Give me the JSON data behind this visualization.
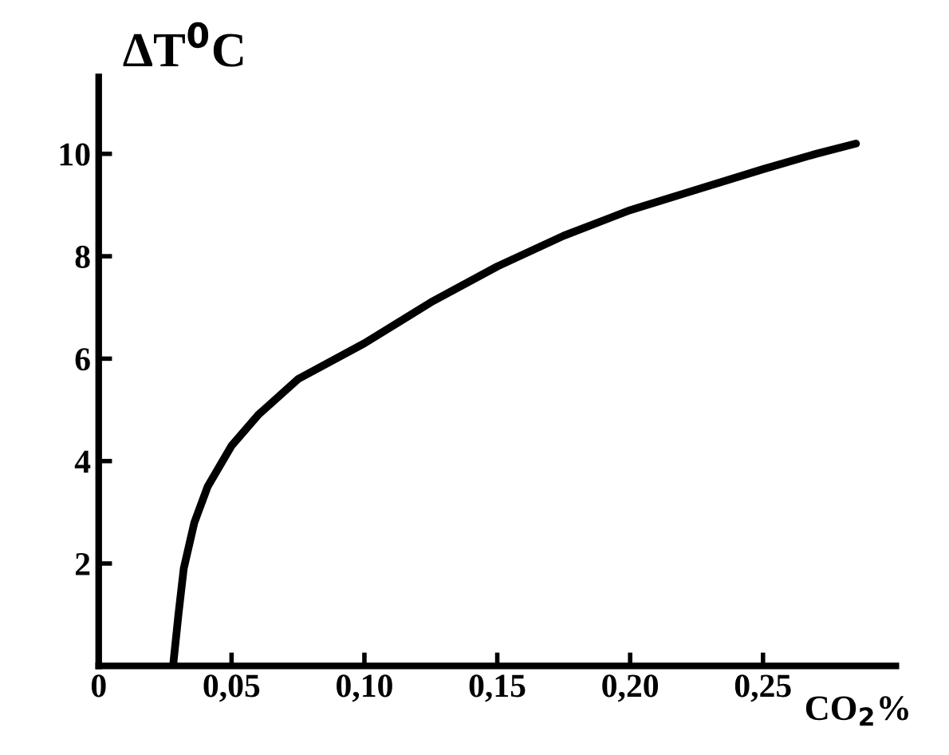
{
  "chart_data": {
    "type": "line",
    "ylabel": "ΔT$^{0}$C",
    "xlabel": "CO$_{2}$%",
    "x": [
      0.028,
      0.03,
      0.032,
      0.036,
      0.041,
      0.05,
      0.06,
      0.075,
      0.1,
      0.125,
      0.15,
      0.175,
      0.2,
      0.225,
      0.25,
      0.27,
      0.285
    ],
    "series": [
      {
        "color": "#000000",
        "values": [
          0,
          1.0,
          1.9,
          2.8,
          3.5,
          4.3,
          4.9,
          5.6,
          6.3,
          7.1,
          7.8,
          8.4,
          8.9,
          9.3,
          9.7,
          10.0,
          10.2
        ]
      }
    ],
    "xlim": [
      0,
      0.3
    ],
    "ylim": [
      0,
      11.5
    ],
    "xticks": [
      0,
      {
        "value": 0.05,
        "label": "0,05"
      },
      {
        "value": 0.1,
        "label": "0,10"
      },
      {
        "value": 0.15,
        "label": "0,15"
      },
      {
        "value": 0.2,
        "label": "0,20"
      },
      {
        "value": 0.25,
        "label": "0,25"
      }
    ],
    "yticks": [
      2,
      4,
      6,
      8,
      10
    ],
    "grid": false,
    "marker": "none",
    "line_style": "solid"
  }
}
